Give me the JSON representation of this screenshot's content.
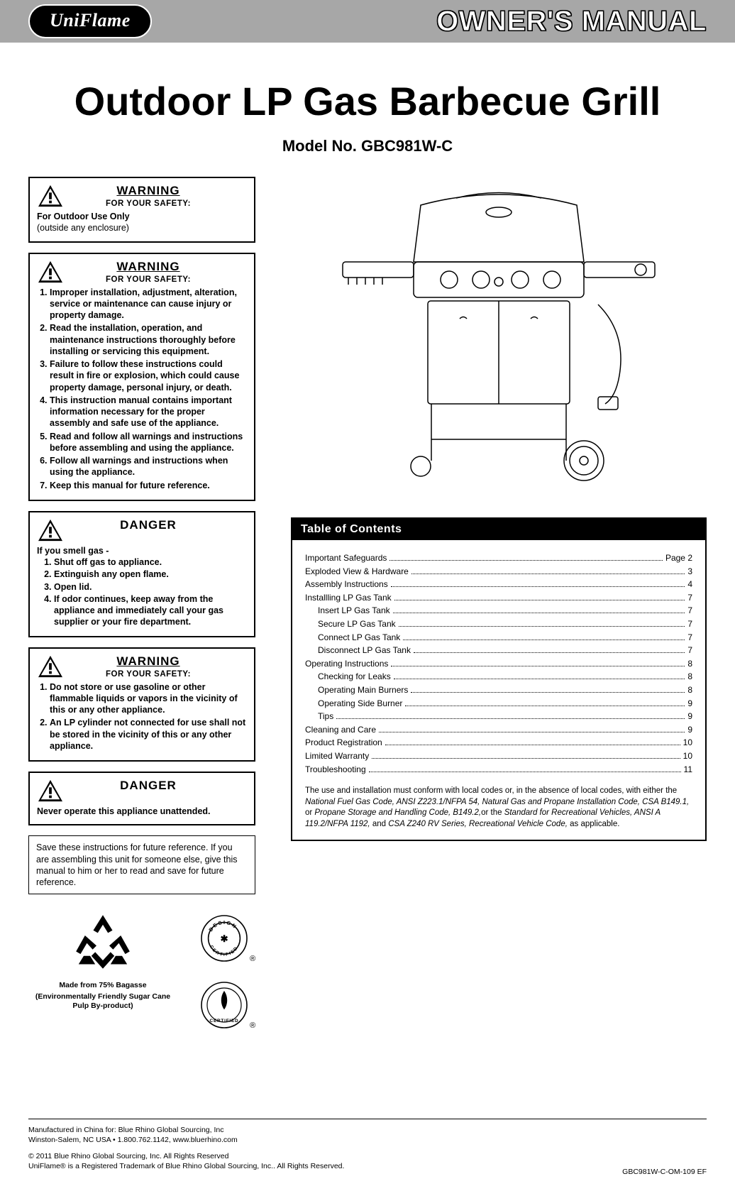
{
  "header": {
    "brand": "UniFlame",
    "manual_title": "OWNER'S MANUAL"
  },
  "product": {
    "title": "Outdoor LP Gas Barbecue Grill",
    "model_label": "Model No. GBC981W-C"
  },
  "warnings": [
    {
      "title": "WARNING",
      "title_underline": true,
      "subtitle": "FOR YOUR SAFETY:",
      "body_type": "outdoor",
      "outdoor_line1": "For Outdoor Use Only",
      "outdoor_line2": "(outside any enclosure)"
    },
    {
      "title": "WARNING",
      "title_underline": true,
      "subtitle": "FOR YOUR SAFETY:",
      "body_type": "ol",
      "items": [
        "Improper installation, adjustment, alteration, service or maintenance can cause injury or property damage.",
        "Read the installation, operation, and maintenance instructions thoroughly before installing or servicing this equipment.",
        "Failure to follow these instructions could result in fire or explosion, which could cause property damage, personal injury, or death.",
        "This instruction manual contains important information necessary for the proper assembly and safe use of the appliance.",
        "Read and follow all warnings and instructions before assembling and using the appliance.",
        "Follow all warnings and instructions when using the appliance.",
        "Keep this manual for future reference."
      ]
    },
    {
      "title": "DANGER",
      "title_underline": false,
      "subtitle": "",
      "body_type": "gas",
      "gas_lead": "If you smell gas -",
      "gas_items": [
        "Shut off gas to appliance.",
        "Extinguish any open flame.",
        "Open lid.",
        "If odor continues, keep away from the appliance and immediately call your gas supplier or your fire department."
      ]
    },
    {
      "title": "WARNING",
      "title_underline": true,
      "subtitle": "FOR YOUR SAFETY:",
      "body_type": "ol",
      "items": [
        "Do not store or use gasoline or other flammable liquids or vapors in the vicinity of this or any other appliance.",
        "An LP cylinder not connected for use shall not be stored in the vicinity of this or any other appliance."
      ]
    },
    {
      "title": "DANGER",
      "title_underline": false,
      "subtitle": "",
      "body_type": "line",
      "line": "Never operate this appliance unattended."
    }
  ],
  "save_note": "Save these instructions for future reference. If you are assembling this unit for someone else, give this manual to him or her to read and save for future reference.",
  "badges": {
    "recycle_line1": "Made from 75% Bagasse",
    "recycle_line2": "(Environmentally Friendly Sugar Cane Pulp By-product)"
  },
  "toc": {
    "heading": "Table of Contents",
    "rows": [
      {
        "label": "Important Safeguards",
        "page": "Page 2",
        "indent": false
      },
      {
        "label": "Exploded View & Hardware",
        "page": "3",
        "indent": false
      },
      {
        "label": "Assembly Instructions",
        "page": "4",
        "indent": false
      },
      {
        "label": "Installling LP Gas Tank",
        "page": "7",
        "indent": false
      },
      {
        "label": "Insert LP Gas Tank",
        "page": "7",
        "indent": true
      },
      {
        "label": "Secure LP Gas Tank",
        "page": "7",
        "indent": true
      },
      {
        "label": "Connect LP Gas Tank",
        "page": "7",
        "indent": true
      },
      {
        "label": "Disconnect LP Gas Tank",
        "page": "7",
        "indent": true
      },
      {
        "label": "Operating Instructions",
        "page": "8",
        "indent": false
      },
      {
        "label": "Checking for Leaks",
        "page": "8",
        "indent": true
      },
      {
        "label": "Operating Main Burners",
        "page": "8",
        "indent": true
      },
      {
        "label": "Operating Side Burner",
        "page": "9",
        "indent": true
      },
      {
        "label": "Tips",
        "page": "9",
        "indent": true
      },
      {
        "label": "Cleaning and Care",
        "page": "9",
        "indent": false
      },
      {
        "label": "Product Registration",
        "page": "10",
        "indent": false
      },
      {
        "label": "Limited Warranty",
        "page": "10",
        "indent": false
      },
      {
        "label": "Troubleshooting",
        "page": "11",
        "indent": false
      }
    ],
    "note_plain1": "The use and installation must conform with local codes or, in the absence of local codes, with either the ",
    "note_ital1": "National Fuel Gas Code, ANSI Z223.1/NFPA 54, Natural Gas and Propane Installation Code, CSA B149.1,",
    "note_plain2": " or ",
    "note_ital2": "Propane Storage and Handling Code, B149.2,",
    "note_plain3": "or the ",
    "note_ital3": "Standard for Recreational Vehicles, ANSI A 119.2/NFPA 1192,",
    "note_plain4": " and ",
    "note_ital4": "CSA Z240 RV Series, Recreational Vehicle Code,",
    "note_plain5": " as applicable."
  },
  "footer": {
    "mfg1": "Manufactured in China for: Blue Rhino Global Sourcing, Inc",
    "mfg2": "Winston-Salem, NC USA • 1.800.762.1142, www.bluerhino.com",
    "copy1": "© 2011 Blue Rhino Global Sourcing, Inc. All Rights Reserved",
    "copy2": "UniFlame® is a Registered Trademark of Blue Rhino Global Sourcing, Inc.. All Rights Reserved.",
    "doc_code": "GBC981W-C-OM-109 EF"
  }
}
